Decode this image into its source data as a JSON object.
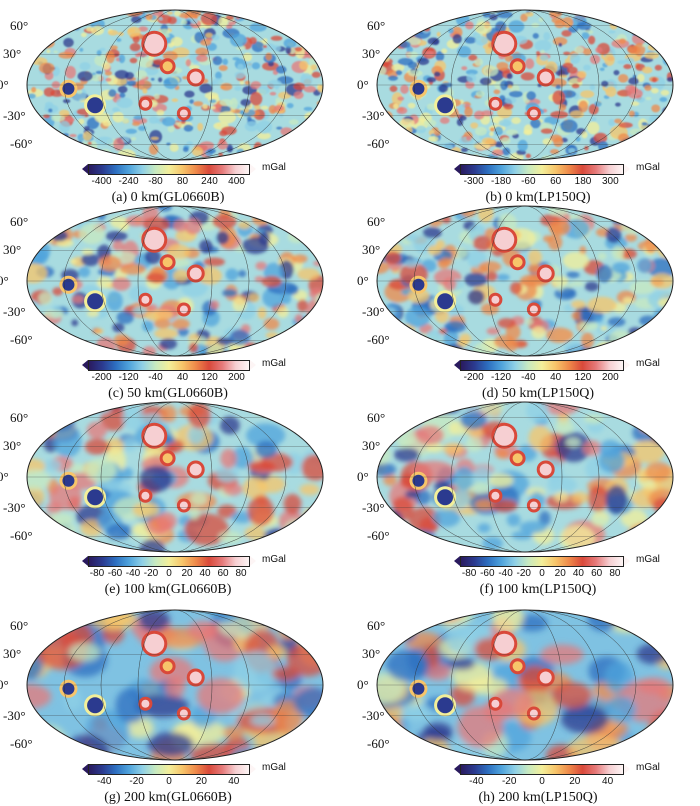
{
  "figure": {
    "unit": "mGal",
    "lat_labels": [
      "60°",
      "30°",
      "0°",
      "-30°",
      "-60°"
    ],
    "colormap": [
      "#2a1a5e",
      "#2b3a8f",
      "#2d6fc0",
      "#4fa3dc",
      "#8fd0e6",
      "#c8eac0",
      "#f3ef9a",
      "#f7c56a",
      "#ef8a4a",
      "#d9493a",
      "#e67a7a",
      "#f6cfd2",
      "#fdf5f5"
    ],
    "panels": [
      {
        "id": "a",
        "caption": "(a) 0 km(GL0660B)",
        "ticks": [
          "-400",
          "-240",
          "-80",
          "80",
          "240",
          "400"
        ],
        "detail": "high"
      },
      {
        "id": "b",
        "caption": "(b) 0 km(LP150Q)",
        "ticks": [
          "-300",
          "-180",
          "-60",
          "60",
          "180",
          "300"
        ],
        "detail": "high"
      },
      {
        "id": "c",
        "caption": "(c) 50 km(GL0660B)",
        "ticks": [
          "-200",
          "-120",
          "-40",
          "40",
          "120",
          "200"
        ],
        "detail": "mid"
      },
      {
        "id": "d",
        "caption": "(d) 50 km(LP150Q)",
        "ticks": [
          "-200",
          "-120",
          "-40",
          "40",
          "120",
          "200"
        ],
        "detail": "mid"
      },
      {
        "id": "e",
        "caption": "(e) 100 km(GL0660B)",
        "ticks": [
          "-80",
          "-60",
          "-40",
          "-20",
          "0",
          "20",
          "40",
          "60",
          "80"
        ],
        "detail": "low"
      },
      {
        "id": "f",
        "caption": "(f) 100 km(LP150Q)",
        "ticks": [
          "-80",
          "-60",
          "-40",
          "-20",
          "0",
          "20",
          "40",
          "60",
          "80"
        ],
        "detail": "low"
      },
      {
        "id": "g",
        "caption": "(g) 200 km(GL0660B)",
        "ticks": [
          "-40",
          "-20",
          "0",
          "20",
          "40"
        ],
        "detail": "vlow"
      },
      {
        "id": "h",
        "caption": "(h) 200 km(LP150Q)",
        "ticks": [
          "-40",
          "-20",
          "0",
          "20",
          "40"
        ],
        "detail": "vlow"
      }
    ]
  }
}
